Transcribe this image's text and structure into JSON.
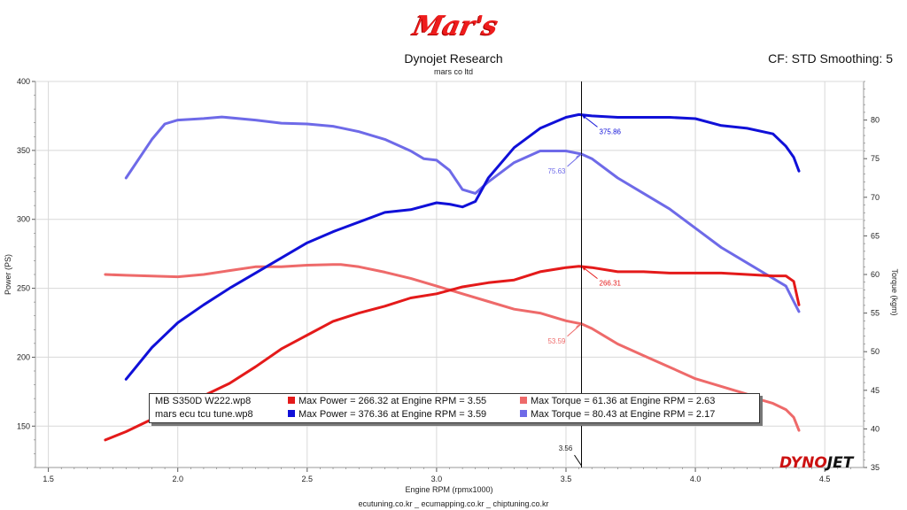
{
  "header": {
    "logo_text": "Mar's",
    "title": "Dynojet Research",
    "subtitle": "mars co ltd",
    "settings": "CF: STD Smoothing: 5"
  },
  "footer": {
    "text": "ecutuning.co.kr _ ecumapping.co.kr _ chiptuning.co.kr"
  },
  "brand": {
    "text": "DYNOJET",
    "colors": {
      "dyno": "#cc1111",
      "jet": "#111111"
    }
  },
  "colors": {
    "stock_power": "#e41a1a",
    "tuned_power": "#1010d8",
    "stock_torque": "#ee6a6a",
    "tuned_torque": "#6e6ae8"
  },
  "chart_data": {
    "type": "line",
    "xlabel": "Engine RPM (rpmx1000)",
    "ylabel": "Power (PS)",
    "y2label": "Torque (kgm)",
    "xlim": [
      1.45,
      4.65
    ],
    "ylim": [
      120,
      400
    ],
    "y2lim": [
      35,
      85
    ],
    "x_ticks": [
      1.5,
      2.0,
      2.5,
      3.0,
      3.5,
      4.0,
      4.5
    ],
    "x_tick_labels": [
      "1.5",
      "2.0",
      "2.5",
      "3.0",
      "3.5",
      "4.0",
      "4.5"
    ],
    "y_ticks": [
      150,
      200,
      250,
      300,
      350,
      400
    ],
    "y2_ticks": [
      35,
      40,
      45,
      50,
      55,
      60,
      65,
      70,
      75,
      80
    ],
    "grid": true,
    "cursor": {
      "x": 3.56,
      "label": "3.56"
    },
    "annotations": [
      {
        "text": "375.86",
        "x": 3.56,
        "y": 376,
        "series": "tuned_power"
      },
      {
        "text": "75.63",
        "x": 3.56,
        "y2": 75.6,
        "series": "tuned_torque"
      },
      {
        "text": "266.31",
        "x": 3.56,
        "y": 266,
        "series": "stock_power"
      },
      {
        "text": "53.59",
        "x": 3.56,
        "y2": 53.6,
        "series": "stock_torque"
      }
    ],
    "series": [
      {
        "key": "stock_power",
        "axis": "left",
        "x": [
          1.72,
          1.8,
          1.9,
          2.0,
          2.1,
          2.2,
          2.3,
          2.4,
          2.5,
          2.6,
          2.7,
          2.8,
          2.9,
          3.0,
          3.1,
          3.2,
          3.3,
          3.4,
          3.5,
          3.55,
          3.6,
          3.7,
          3.8,
          3.9,
          4.0,
          4.1,
          4.2,
          4.3,
          4.35,
          4.38,
          4.4
        ],
        "y": [
          140,
          146,
          155,
          162,
          172,
          181,
          193,
          206,
          216,
          226,
          232,
          237,
          243,
          246,
          251,
          254,
          256,
          262,
          265,
          266,
          265,
          262,
          262,
          261,
          261,
          261,
          260,
          259,
          259,
          255,
          238
        ]
      },
      {
        "key": "tuned_power",
        "axis": "left",
        "x": [
          1.8,
          1.9,
          2.0,
          2.1,
          2.2,
          2.3,
          2.4,
          2.5,
          2.6,
          2.7,
          2.8,
          2.9,
          3.0,
          3.05,
          3.1,
          3.15,
          3.2,
          3.3,
          3.4,
          3.5,
          3.55,
          3.6,
          3.7,
          3.8,
          3.9,
          4.0,
          4.1,
          4.2,
          4.3,
          4.35,
          4.38,
          4.4
        ],
        "y": [
          184,
          207,
          225,
          238,
          250,
          261,
          272,
          283,
          291,
          298,
          305,
          307,
          312,
          311,
          309,
          313,
          330,
          352,
          366,
          374,
          376,
          375,
          374,
          374,
          374,
          373,
          368,
          366,
          362,
          353,
          345,
          335
        ]
      },
      {
        "key": "stock_torque",
        "axis": "right",
        "x": [
          1.72,
          1.8,
          1.9,
          2.0,
          2.1,
          2.2,
          2.3,
          2.4,
          2.5,
          2.6,
          2.63,
          2.7,
          2.8,
          2.9,
          3.0,
          3.1,
          3.2,
          3.3,
          3.4,
          3.5,
          3.56,
          3.6,
          3.7,
          3.8,
          3.9,
          4.0,
          4.1,
          4.2,
          4.25,
          4.3,
          4.35,
          4.38,
          4.4
        ],
        "y2": [
          60.0,
          59.9,
          59.8,
          59.7,
          60.0,
          60.5,
          61.0,
          61.0,
          61.2,
          61.3,
          61.3,
          61.0,
          60.3,
          59.5,
          58.5,
          57.5,
          56.5,
          55.5,
          55.0,
          54.0,
          53.6,
          53.0,
          51.0,
          49.5,
          48.0,
          46.5,
          45.5,
          44.5,
          43.8,
          43.3,
          42.5,
          41.5,
          39.8
        ]
      },
      {
        "key": "tuned_torque",
        "axis": "right",
        "x": [
          1.8,
          1.9,
          1.95,
          2.0,
          2.1,
          2.17,
          2.3,
          2.4,
          2.5,
          2.6,
          2.7,
          2.8,
          2.9,
          2.95,
          3.0,
          3.05,
          3.1,
          3.15,
          3.2,
          3.3,
          3.4,
          3.5,
          3.56,
          3.6,
          3.7,
          3.8,
          3.9,
          4.0,
          4.1,
          4.2,
          4.3,
          4.35,
          4.38,
          4.4
        ],
        "y2": [
          72.5,
          77.5,
          79.5,
          80.0,
          80.2,
          80.4,
          80.0,
          79.6,
          79.5,
          79.2,
          78.5,
          77.5,
          76.0,
          75.0,
          74.8,
          73.5,
          71.0,
          70.5,
          72.0,
          74.5,
          76.0,
          76.0,
          75.6,
          75.0,
          72.5,
          70.5,
          68.5,
          66.0,
          63.5,
          61.5,
          59.5,
          58.5,
          56.5,
          55.2
        ]
      }
    ]
  },
  "legend": {
    "rows": [
      {
        "file": "MB S350D W222.wp8",
        "power_color": "#e41a1a",
        "torque_color": "#ee6a6a",
        "power_text": "Max Power = 266.32 at Engine RPM = 3.55",
        "torque_text": "Max Torque = 61.36 at Engine RPM = 2.63"
      },
      {
        "file": "mars ecu tcu tune.wp8",
        "power_color": "#1010d8",
        "torque_color": "#6e6ae8",
        "power_text": "Max Power = 376.36 at Engine RPM = 3.59",
        "torque_text": "Max Torque = 80.43 at Engine RPM = 2.17"
      }
    ]
  }
}
